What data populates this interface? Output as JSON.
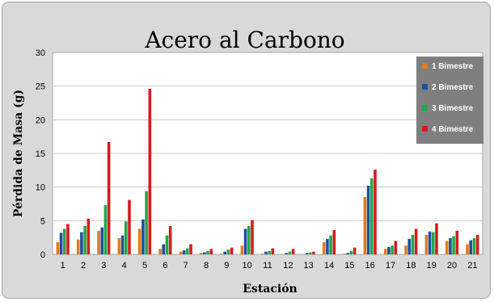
{
  "chart_data": {
    "type": "bar",
    "title": "Acero al Carbono",
    "xlabel": "Estación",
    "ylabel": "Pérdida de Masa (g)",
    "ylim": [
      0,
      30
    ],
    "yticks": [
      0,
      5,
      10,
      15,
      20,
      25,
      30
    ],
    "grid": true,
    "legend_position": "top-right",
    "categories": [
      "1",
      "2",
      "3",
      "4",
      "5",
      "6",
      "7",
      "8",
      "9",
      "10",
      "11",
      "12",
      "13",
      "14",
      "15",
      "16",
      "17",
      "18",
      "19",
      "20",
      "21"
    ],
    "series": [
      {
        "name": "1 Bimestre",
        "color": "#e07b1f",
        "values": [
          1.8,
          2.2,
          3.5,
          2.4,
          3.8,
          0.8,
          0.4,
          0.2,
          0.1,
          1.3,
          0.1,
          0.0,
          0.0,
          1.8,
          0.1,
          8.5,
          0.8,
          1.3,
          2.9,
          2.0,
          1.5
        ]
      },
      {
        "name": "2 Bimestre",
        "color": "#1f4e9c",
        "values": [
          3.2,
          3.3,
          4.0,
          2.8,
          5.2,
          1.5,
          0.6,
          0.3,
          0.4,
          3.8,
          0.4,
          0.2,
          0.2,
          2.3,
          0.2,
          10.2,
          1.1,
          2.3,
          3.4,
          2.4,
          2.1
        ]
      },
      {
        "name": "3 Bimestre",
        "color": "#22a84a",
        "values": [
          3.8,
          4.2,
          7.3,
          4.9,
          9.4,
          2.8,
          0.9,
          0.5,
          0.7,
          4.2,
          0.5,
          0.4,
          0.3,
          2.8,
          0.5,
          11.3,
          1.3,
          2.9,
          3.3,
          2.7,
          2.4
        ]
      },
      {
        "name": "4 Bimestre",
        "color": "#d41c1c",
        "values": [
          4.5,
          5.3,
          16.7,
          8.1,
          24.6,
          4.2,
          1.5,
          0.8,
          1.0,
          5.1,
          0.9,
          0.8,
          0.4,
          3.6,
          1.0,
          12.6,
          2.0,
          3.8,
          4.6,
          3.5,
          2.9
        ]
      }
    ]
  }
}
